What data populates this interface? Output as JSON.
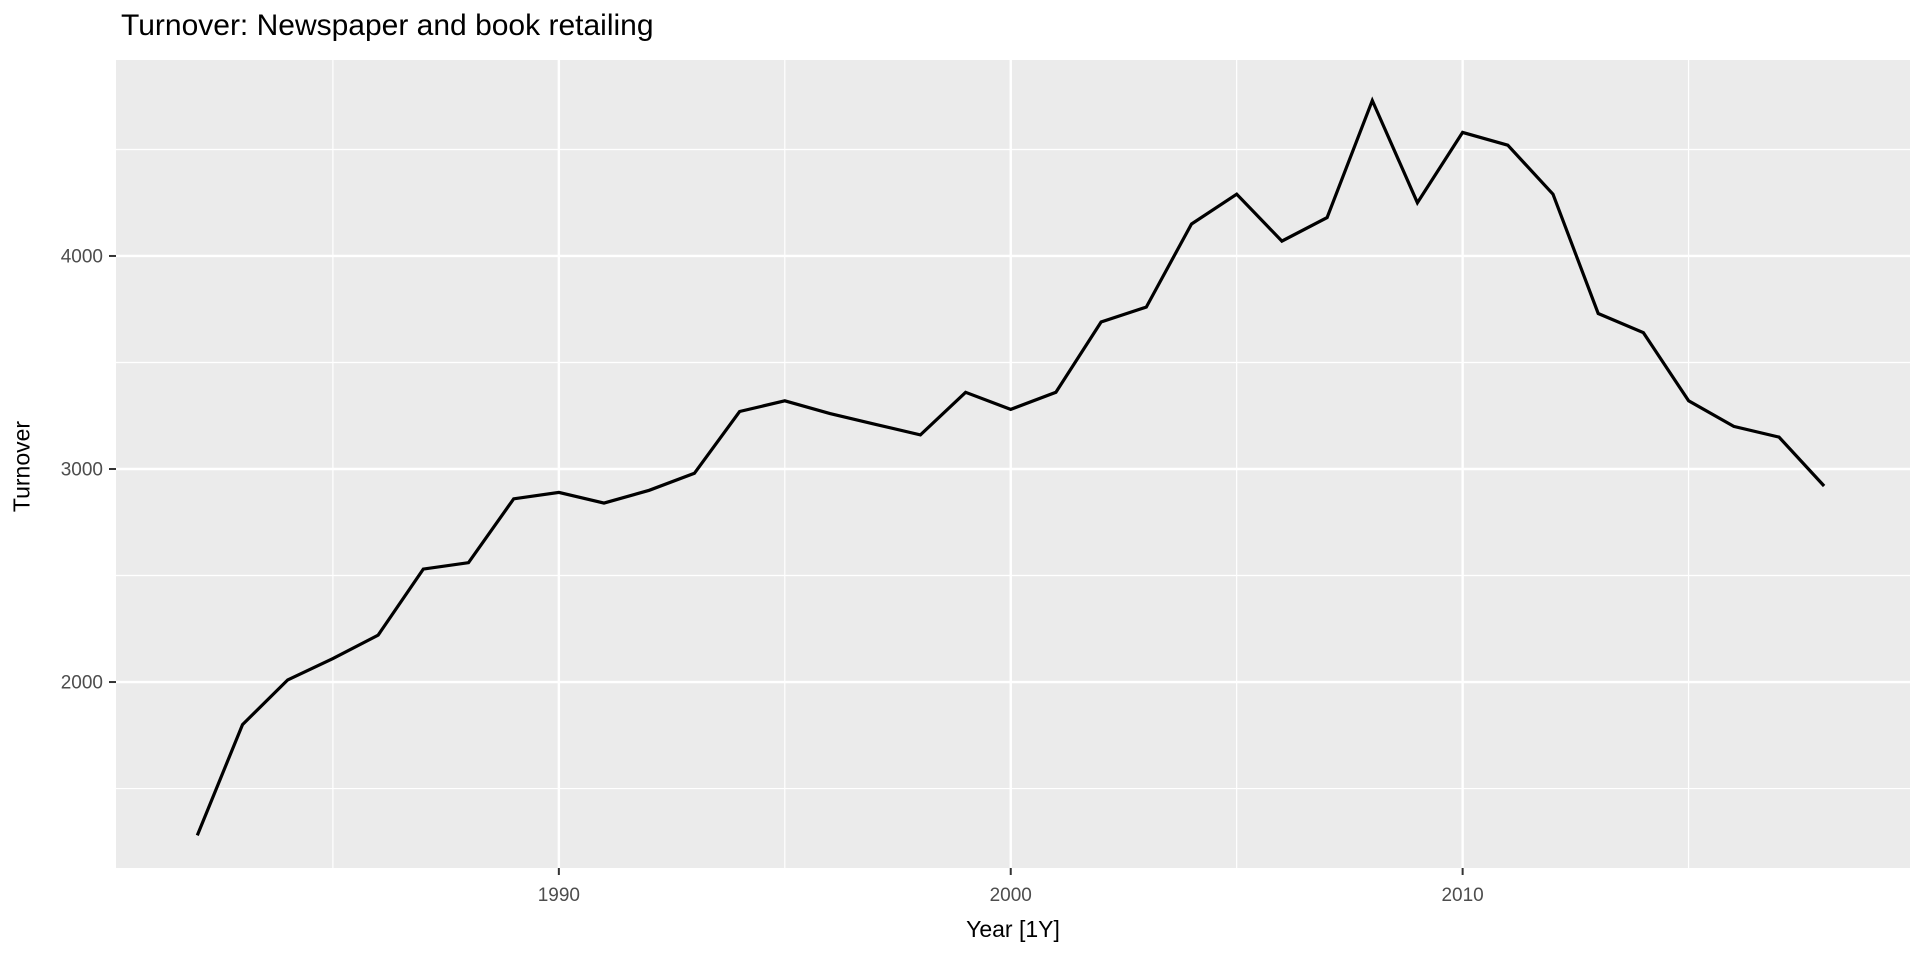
{
  "chart_data": {
    "type": "line",
    "title": "Turnover: Newspaper and book retailing",
    "xlabel": "Year [1Y]",
    "ylabel": "Turnover",
    "x": [
      1982,
      1983,
      1984,
      1985,
      1986,
      1987,
      1988,
      1989,
      1990,
      1991,
      1992,
      1993,
      1994,
      1995,
      1996,
      1997,
      1998,
      1999,
      2000,
      2001,
      2002,
      2003,
      2004,
      2005,
      2006,
      2007,
      2008,
      2009,
      2010,
      2011,
      2012,
      2013,
      2014,
      2015,
      2016,
      2017,
      2018
    ],
    "values": [
      1280,
      1800,
      2010,
      2110,
      2220,
      2530,
      2560,
      2860,
      2890,
      2840,
      2900,
      2980,
      3270,
      3320,
      3260,
      3210,
      3160,
      3360,
      3280,
      3360,
      3690,
      3760,
      4150,
      4290,
      4070,
      4180,
      4730,
      4250,
      4580,
      4520,
      4290,
      3730,
      3640,
      3320,
      3200,
      3150,
      2920
    ],
    "xlim": [
      1980.2,
      2019.9
    ],
    "ylim": [
      1127,
      4920
    ],
    "x_ticks": [
      1990,
      2000,
      2010
    ],
    "x_tick_labels": [
      "1990",
      "2000",
      "2010"
    ],
    "x_minor_ticks": [
      1985,
      1995,
      2005,
      2015
    ],
    "y_ticks": [
      2000,
      3000,
      4000
    ],
    "y_tick_labels": [
      "2000",
      "3000",
      "4000"
    ],
    "y_minor_ticks": [
      1500,
      2500,
      3500,
      4500
    ],
    "grid": true,
    "legend": "none",
    "style": {
      "panel_bg": "#EBEBEB",
      "grid_color": "#FFFFFF",
      "line_color": "#000000",
      "tick_label_color": "#4D4D4D",
      "tick_mark_color": "#333333",
      "title_color": "#000000"
    }
  }
}
